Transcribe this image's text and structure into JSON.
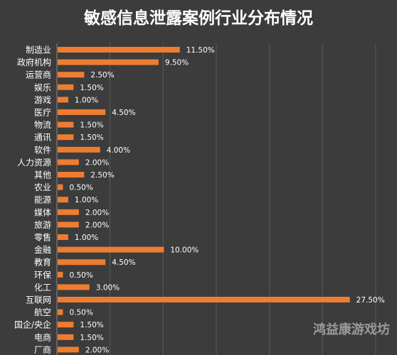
{
  "chart_data": {
    "type": "bar",
    "orientation": "horizontal",
    "title": "敏感信息泄露案例行业分布情况",
    "categories": [
      "制造业",
      "政府机构",
      "运营商",
      "娱乐",
      "游戏",
      "医疗",
      "物流",
      "通讯",
      "软件",
      "人力资源",
      "其他",
      "农业",
      "能源",
      "媒体",
      "旅游",
      "零售",
      "金融",
      "教育",
      "环保",
      "化工",
      "互联网",
      "航空",
      "国企/央企",
      "电商",
      "厂商"
    ],
    "values": [
      11.5,
      9.5,
      2.5,
      1.5,
      1.0,
      4.5,
      1.5,
      1.5,
      4.0,
      2.0,
      2.5,
      0.5,
      1.0,
      2.0,
      2.0,
      1.0,
      10.0,
      4.5,
      0.5,
      3.0,
      27.5,
      0.5,
      1.5,
      1.5,
      2.0
    ],
    "value_labels": [
      "11.50%",
      "9.50%",
      "2.50%",
      "1.50%",
      "1.00%",
      "4.50%",
      "1.50%",
      "1.50%",
      "4.00%",
      "2.00%",
      "2.50%",
      "0.50%",
      "1.00%",
      "2.00%",
      "2.00%",
      "1.00%",
      "10.00%",
      "4.50%",
      "0.50%",
      "3.00%",
      "27.50%",
      "0.50%",
      "1.50%",
      "1.50%",
      "2.00%"
    ],
    "xlim": [
      0,
      30
    ],
    "grid": true,
    "legend": "none",
    "colors": {
      "background": "#3c3c3c",
      "bar": "#ed7d31",
      "text": "#ffffff",
      "grid": "#5a5a5a"
    }
  },
  "watermark": "鸿益康游戏坊"
}
